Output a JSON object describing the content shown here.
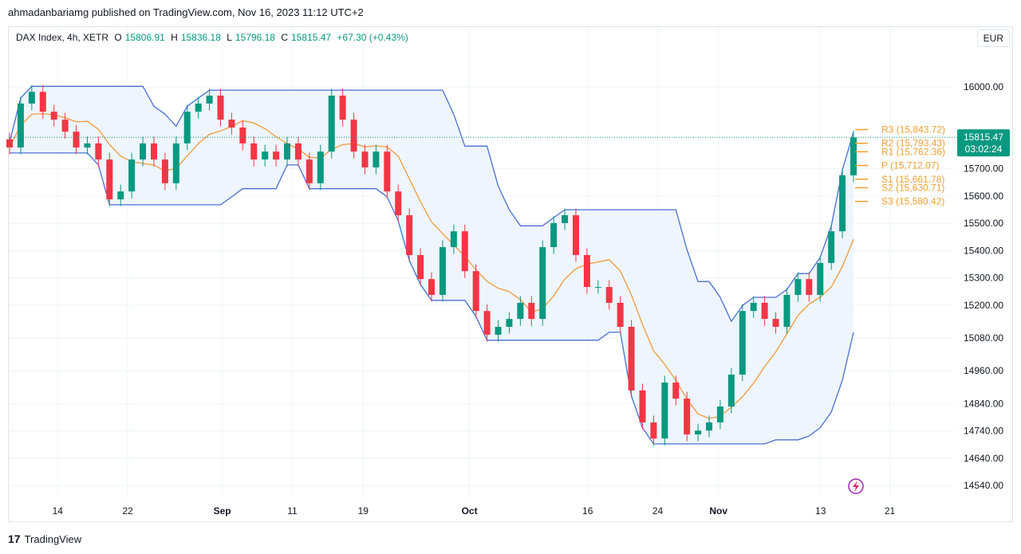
{
  "publish_line": "ahmadanbariamg published on TradingView.com, Nov 16, 2023 11:12 UTC+2",
  "legend": {
    "symbol": "DAX Index, 4h, XETR",
    "o_label": "O",
    "o": "15806.91",
    "h_label": "H",
    "h": "15836.18",
    "l_label": "L",
    "l": "15796.18",
    "c_label": "C",
    "c": "15815.47",
    "change": "+67.30 (+0.43%)"
  },
  "currency_button": "EUR",
  "footer": {
    "logo": "17",
    "brand": "TradingView"
  },
  "colors": {
    "up": "#089981",
    "down": "#f23645",
    "channel": "#4a6fd1",
    "basis": "#f09a3e",
    "pivot": "#f0a030",
    "fill": "#eaf3fb"
  },
  "chart_data": {
    "type": "candlestick",
    "title": "",
    "y_ticks": [
      "16000.00",
      "15700.00",
      "15600.00",
      "15500.00",
      "15400.00",
      "15300.00",
      "15200.00",
      "15080.00",
      "14960.00",
      "14840.00",
      "14740.00",
      "14640.00",
      "14540.00"
    ],
    "y_range": [
      14480,
      16150
    ],
    "x_ticks": [
      "14",
      "22",
      "Sep",
      "11",
      "19",
      "Oct",
      "16",
      "24",
      "Nov",
      "13",
      "21"
    ],
    "x_tick_fraction": [
      0.057,
      0.14,
      0.252,
      0.335,
      0.419,
      0.545,
      0.685,
      0.768,
      0.84,
      0.961,
      1.043
    ],
    "closes": [
      15778,
      15939,
      15982,
      15909,
      15880,
      15836,
      15778,
      15793,
      15734,
      15588,
      15617,
      15734,
      15793,
      15734,
      15647,
      15793,
      15909,
      15939,
      15968,
      15880,
      15851,
      15793,
      15734,
      15763,
      15734,
      15793,
      15734,
      15647,
      15763,
      15968,
      15880,
      15763,
      15705,
      15763,
      15617,
      15530,
      15384,
      15296,
      15238,
      15413,
      15471,
      15325,
      15179,
      15092,
      15121,
      15150,
      15209,
      15150,
      15413,
      15501,
      15530,
      15384,
      15267,
      15267,
      15209,
      15121,
      14888,
      14771,
      14712,
      14917,
      14858,
      14727,
      14741,
      14771,
      14829,
      14946,
      15179,
      15209,
      15150,
      15121,
      15238,
      15296,
      15238,
      15355,
      15471,
      15676,
      15815
    ],
    "last_price": {
      "value": "15815.47",
      "countdown": "03:02:24"
    },
    "pivots": [
      {
        "label": "R3 (15,843.72)",
        "value": 15843.72
      },
      {
        "label": "R2 (15,793.43)",
        "value": 15793.43
      },
      {
        "label": "R1 (15,762.36)",
        "value": 15762.36
      },
      {
        "label": "P (15,712.07)",
        "value": 15712.07
      },
      {
        "label": "S1 (15,661.78)",
        "value": 15661.78
      },
      {
        "label": "S2 (15,630.71)",
        "value": 15630.71
      },
      {
        "label": "S3 (15,580.42)",
        "value": 15580.42
      }
    ]
  }
}
